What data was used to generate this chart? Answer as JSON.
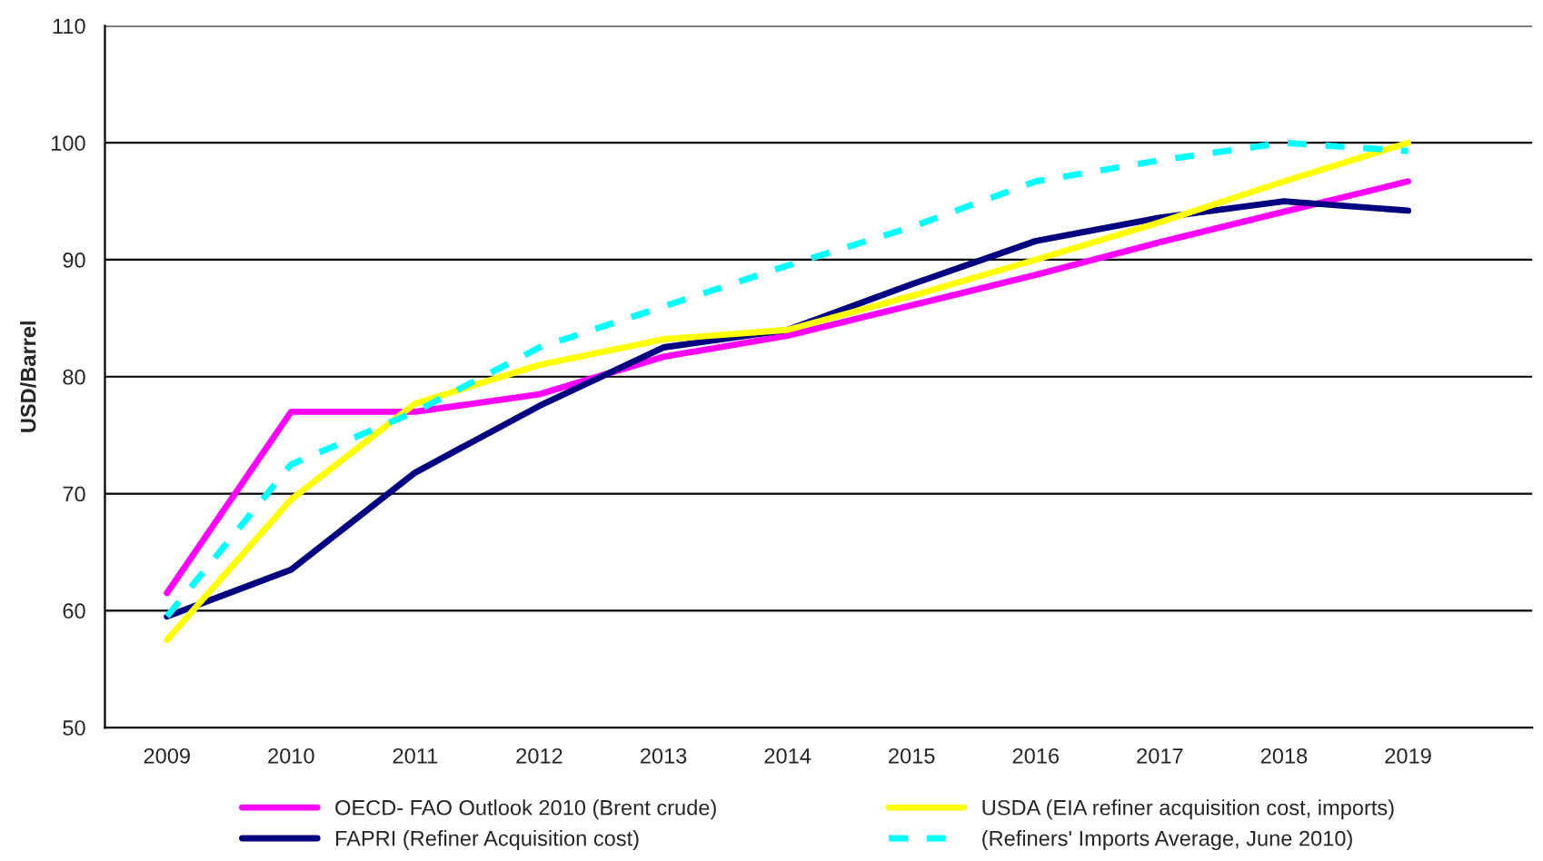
{
  "chart_data": {
    "type": "line",
    "ylabel": "USD/Barrel",
    "categories": [
      "2009",
      "2010",
      "2011",
      "2012",
      "2013",
      "2014",
      "2015",
      "2016",
      "2017",
      "2018",
      "2019"
    ],
    "ylim": [
      50,
      110
    ],
    "yticks": [
      50,
      60,
      70,
      80,
      90,
      100,
      110
    ],
    "grid": "y",
    "legend": "bottom",
    "marker": "none",
    "series": [
      {
        "name": "OECD- FAO Outlook 2010 (Brent crude)",
        "color": "#ff00ff",
        "line_style": "solid",
        "values": [
          61.5,
          77,
          77,
          78.5,
          81.7,
          83.5,
          86.1,
          88.7,
          91.5,
          94.1,
          96.7
        ]
      },
      {
        "name": "FAPRI (Refiner Acquisition cost)",
        "color": "#000080",
        "line_style": "solid",
        "values": [
          59.5,
          63.5,
          71.8,
          77.5,
          82.5,
          84,
          87.9,
          91.6,
          93.6,
          95,
          94.2
        ]
      },
      {
        "name": "USDA (EIA refiner acquisition cost, imports)",
        "color": "#ffff00",
        "line_style": "solid",
        "values": [
          57.5,
          69.5,
          77.7,
          81,
          83.2,
          84,
          86.9,
          90,
          93.2,
          96.7,
          100
        ]
      },
      {
        "name": "(Refiners' Imports Average, June 2010)",
        "color": "#00ffff",
        "line_style": "dashed",
        "values": [
          59.5,
          72.5,
          77,
          82.5,
          86,
          89.5,
          92.8,
          96.7,
          98.5,
          100,
          99.3
        ]
      }
    ]
  }
}
